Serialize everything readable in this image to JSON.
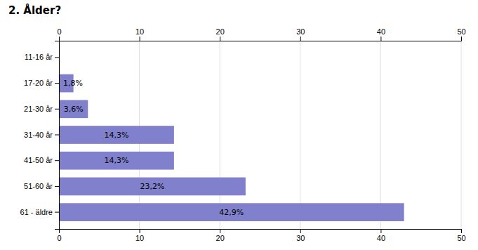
{
  "chart_data": {
    "type": "bar",
    "title": "2. Ålder?",
    "orientation": "horizontal",
    "categories": [
      "11-16 år",
      "17-20 år",
      "21-30 år",
      "31-40 år",
      "41-50 år",
      "51-60 år",
      "61 - äldre"
    ],
    "values": [
      0,
      1.8,
      3.6,
      14.3,
      14.3,
      23.2,
      42.9
    ],
    "value_labels": [
      null,
      "1,8%",
      "3,6%",
      "14,3%",
      "14,3%",
      "23,2%",
      "42,9%"
    ],
    "data_labels": true,
    "color": "#8080cc",
    "xlim": [
      0,
      50
    ],
    "xticks": [
      0,
      10,
      20,
      30,
      40,
      50
    ],
    "grid": true
  }
}
